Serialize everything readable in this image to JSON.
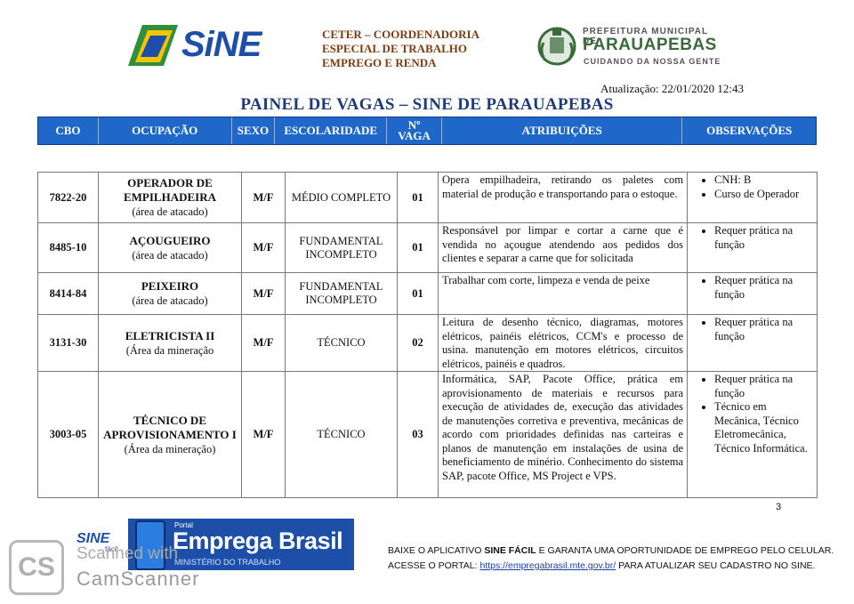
{
  "header": {
    "sine_logo": "SiNE",
    "ceter_lines": [
      "CETER – COORDENADORIA",
      "ESPECIAL DE TRABALHO",
      "EMPREGO E RENDA"
    ],
    "prefeitura_top": "PREFEITURA MUNICIPAL DE",
    "prefeitura_name": "PARAUAPEBAS",
    "prefeitura_slogan": "CUIDANDO DA NOSSA GENTE",
    "update": "Atualização: 22/01/2020 12:43",
    "title": "PAINEL DE VAGAS – SINE DE PARAUAPEBAS"
  },
  "columns": [
    "CBO",
    "OCUPAÇÃO",
    "SEXO",
    "ESCOLARIDADE",
    "Nº VAGA",
    "ATRIBUIÇÕES",
    "OBSERVAÇÕES"
  ],
  "rows": [
    {
      "cbo": "7822-20",
      "occupation": "OPERADOR DE EMPILHADEIRA",
      "area": "(área de atacado)",
      "sex": "M/F",
      "education": "MÉDIO COMPLETO",
      "count": "01",
      "duties": "Opera empilhadeira, retirando os paletes com material de produção e transportando para o estoque.",
      "notes": [
        "CNH: B",
        "Curso de Operador"
      ]
    },
    {
      "cbo": "8485-10",
      "occupation": "AÇOUGUEIRO",
      "area": "(área de atacado)",
      "sex": "M/F",
      "education": "FUNDAMENTAL INCOMPLETO",
      "count": "01",
      "duties": "Responsável por limpar e cortar a carne que é vendida no açougue atendendo aos pedidos dos clientes e separar a carne que for solicitada",
      "notes": [
        "Requer prática na função"
      ]
    },
    {
      "cbo": "8414-84",
      "occupation": "PEIXEIRO",
      "area": "(área de atacado)",
      "sex": "M/F",
      "education": "FUNDAMENTAL INCOMPLETO",
      "count": "01",
      "duties": "Trabalhar com corte, limpeza e venda de peixe",
      "notes": [
        "Requer prática na função"
      ]
    },
    {
      "cbo": "3131-30",
      "occupation": "ELETRICISTA II",
      "area": "(Área da mineração",
      "sex": "M/F",
      "education": "TÉCNICO",
      "count": "02",
      "duties": "Leitura de desenho técnico, diagramas, motores elétricos, painéis elétricos, CCM's e processo de usina. manutenção em motores elétricos, circuitos elétricos, painéis e quadros.",
      "notes": [
        "Requer prática na função"
      ]
    },
    {
      "cbo": "3003-05",
      "occupation": "TÉCNICO DE APROVISIONAMENTO I",
      "area": "(Área da mineração)",
      "sex": "M/F",
      "education": "TÉCNICO",
      "count": "03",
      "duties": "Informática, SAP, Pacote Office, prática em aprovisionamento de materiais e recursos para execução de atividades de, execução das atividades de manutenções corretiva e preventiva, mecânicas de acordo com prioridades definidas nas carteiras e planos de manutenção em instalações de usina de beneficiamento de minério. Conhecimento do sistema SAP, pacote Office, MS Project e VPS.",
      "notes": [
        "Requer prática na função",
        "Técnico em Mecânica, Técnico Eletromecânica, Técnico Informática."
      ]
    }
  ],
  "page_number": "3",
  "footer": {
    "sine_facil": "SINE",
    "sine_facil_sub": "fácil",
    "portal": "Portal",
    "brand": "Emprega Brasil",
    "ministry": "MINISTÉRIO DO TRABALHO",
    "line1_a": "BAIXE O APLICATIVO ",
    "line1_b": "SINE FÁCIL",
    "line1_c": " E GARANTA UMA OPORTUNIDADE DE EMPREGO PELO CELULAR.",
    "line2_a": "ACESSE O PORTAL: ",
    "line2_link": "https://empregabrasil.mte.gov.br/",
    "line2_c": " PARA ATUALIZAR SEU CADASTRO NO SINE.",
    "scanner_logo": "CS",
    "scanner_1": "Scanned with",
    "scanner_2": "CamScanner"
  }
}
